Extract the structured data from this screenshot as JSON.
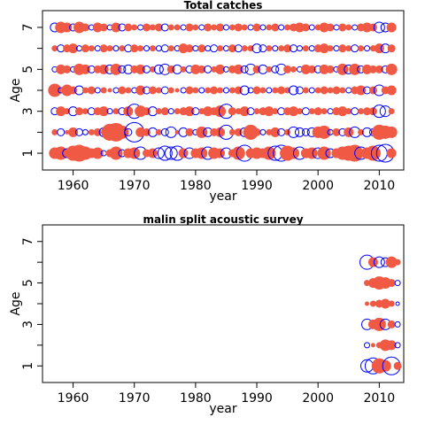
{
  "chart_data": [
    {
      "type": "scatter",
      "title": "Total catches",
      "xlabel": "year",
      "ylabel": "Age",
      "xlim": [
        1955,
        2014
      ],
      "ylim": [
        0.2,
        7.8
      ],
      "xticks": [
        1960,
        1970,
        1980,
        1990,
        2000,
        2010
      ],
      "yticks": [
        1,
        2,
        3,
        4,
        5,
        6,
        7
      ],
      "ytick_labels": [
        "1",
        "",
        "3",
        "",
        "5",
        "",
        "7"
      ],
      "grid": false,
      "colors": {
        "positive": "#F05A45",
        "negative": "#0000FF"
      },
      "description_of_marks": "bubble residual plot: filled red circles for positive residuals, open blue circles for negative; size proportional to magnitude",
      "years": [
        1957,
        1958,
        1959,
        1960,
        1961,
        1962,
        1963,
        1964,
        1965,
        1966,
        1967,
        1968,
        1969,
        1970,
        1971,
        1972,
        1973,
        1974,
        1975,
        1976,
        1977,
        1978,
        1979,
        1980,
        1981,
        1982,
        1983,
        1984,
        1985,
        1986,
        1987,
        1988,
        1989,
        1990,
        1991,
        1992,
        1993,
        1994,
        1995,
        1996,
        1997,
        1998,
        1999,
        2000,
        2001,
        2002,
        2003,
        2004,
        2005,
        2006,
        2007,
        2008,
        2009,
        2010,
        2011,
        2012
      ],
      "residuals": {
        "1": [
          0.6,
          0.7,
          -0.5,
          0.8,
          0.9,
          0.7,
          0.5,
          0.6,
          -0.3,
          0.4,
          0.7,
          -0.4,
          0.5,
          0.6,
          -0.7,
          0.4,
          0.5,
          -0.6,
          -0.8,
          -0.7,
          -0.8,
          0.5,
          -0.6,
          0.5,
          0.6,
          -0.7,
          0.6,
          0.5,
          -0.6,
          0.4,
          0.7,
          -0.9,
          0.5,
          0.6,
          0.5,
          0.7,
          -0.8,
          -0.9,
          0.8,
          0.6,
          -0.7,
          0.5,
          0.6,
          -0.6,
          0.7,
          -0.5,
          0.5,
          0.7,
          0.8,
          0.9,
          -0.7,
          0.6,
          0.8,
          -0.9,
          -1.0,
          0.5
        ],
        "2": [
          0.3,
          -0.4,
          0.2,
          0.5,
          -0.4,
          -0.3,
          0.3,
          0.4,
          -0.5,
          0.9,
          1.0,
          0.7,
          -0.4,
          -1.1,
          0.5,
          0.4,
          -0.5,
          0.3,
          -0.4,
          -0.6,
          0.2,
          -0.5,
          0.4,
          -0.3,
          0.6,
          -0.5,
          0.4,
          0.5,
          -0.8,
          0.3,
          0.4,
          -0.5,
          0.8,
          0.4,
          -0.3,
          0.3,
          0.5,
          -0.4,
          0.3,
          -0.6,
          -0.5,
          -0.4,
          -0.5,
          0.6,
          0.7,
          -0.3,
          0.4,
          -0.4,
          0.5,
          -0.6,
          0.3,
          -0.5,
          -0.4,
          0.8,
          0.7,
          0.6
        ],
        "3": [
          -0.4,
          0.5,
          0.3,
          -0.5,
          0.4,
          0.3,
          -0.4,
          0.4,
          0.5,
          -0.3,
          0.3,
          -0.4,
          0.5,
          -0.8,
          0.6,
          0.4,
          -0.5,
          0.3,
          0.4,
          -0.3,
          0.3,
          0.4,
          0.5,
          -0.4,
          0.3,
          0.5,
          0.4,
          0.6,
          -0.8,
          0.4,
          0.3,
          0.5,
          -0.4,
          0.3,
          0.4,
          0.5,
          0.3,
          -0.4,
          0.4,
          0.5,
          0.3,
          -0.4,
          0.3,
          0.4,
          0.3,
          -0.3,
          0.4,
          0.5,
          0.3,
          -0.4,
          0.3,
          0.4,
          0.4,
          -0.7,
          -0.6,
          0.3
        ],
        "4": [
          0.7,
          -0.3,
          0.6,
          0.4,
          -0.5,
          0.3,
          0.4,
          -0.3,
          0.3,
          0.2,
          -0.3,
          0.4,
          0.3,
          -0.3,
          0.5,
          -0.4,
          0.4,
          0.3,
          -0.4,
          0.3,
          0.2,
          -0.3,
          0.4,
          0.3,
          -0.3,
          0.3,
          0.4,
          0.3,
          -0.3,
          0.3,
          0.4,
          -0.5,
          -0.3,
          0.4,
          0.3,
          -0.3,
          0.3,
          0.4,
          0.3,
          -0.5,
          -0.4,
          0.3,
          -0.3,
          0.3,
          0.4,
          0.3,
          0.4,
          0.3,
          -0.3,
          0.4,
          0.5,
          -0.4,
          0.4,
          -0.6,
          0.4,
          0.5
        ],
        "5": [
          -0.3,
          0.5,
          0.4,
          -0.3,
          0.6,
          0.5,
          -0.4,
          0.4,
          0.5,
          -0.5,
          0.6,
          -0.4,
          -0.5,
          0.4,
          0.5,
          -0.4,
          0.3,
          -0.5,
          -0.6,
          0.4,
          -0.5,
          0.3,
          -0.4,
          0.5,
          0.4,
          -0.4,
          0.3,
          0.5,
          -0.3,
          0.4,
          0.5,
          -0.4,
          -0.6,
          0.4,
          -0.5,
          0.3,
          -0.4,
          -0.6,
          0.4,
          0.3,
          -0.3,
          0.5,
          0.4,
          -0.4,
          0.5,
          0.4,
          -0.3,
          0.6,
          -0.5,
          0.6,
          -0.4,
          0.5,
          0.4,
          0.4,
          -0.4,
          0.6
        ],
        "6": [
          0.3,
          -0.4,
          0.4,
          0.5,
          -0.3,
          0.4,
          0.3,
          -0.3,
          0.4,
          0.3,
          -0.3,
          0.3,
          -0.4,
          0.4,
          0.3,
          -0.3,
          0.3,
          -0.3,
          -0.4,
          0.3,
          -0.3,
          0.5,
          0.4,
          -0.3,
          0.4,
          -0.3,
          -0.4,
          0.3,
          -0.3,
          0.4,
          -0.4,
          0.3,
          0.3,
          -0.5,
          -0.4,
          0.3,
          -0.3,
          0.3,
          0.4,
          -0.4,
          -0.3,
          0.3,
          -0.3,
          0.4,
          0.5,
          0.3,
          -0.3,
          0.4,
          0.3,
          -0.4,
          0.3,
          -0.3,
          0.3,
          0.5,
          -0.5,
          0.4
        ],
        "7": [
          -0.5,
          0.6,
          0.5,
          -0.4,
          0.6,
          0.4,
          -0.3,
          0.5,
          0.4,
          -0.3,
          0.5,
          -0.4,
          0.4,
          0.3,
          -0.3,
          0.4,
          0.3,
          0.4,
          -0.4,
          0.3,
          0.3,
          -0.3,
          0.4,
          0.3,
          -0.3,
          0.4,
          0.3,
          0.4,
          -0.3,
          0.3,
          0.4,
          0.3,
          -0.3,
          0.4,
          -0.3,
          0.3,
          0.4,
          -0.3,
          0.3,
          0.4,
          0.5,
          0.4,
          -0.3,
          0.3,
          0.5,
          0.4,
          -0.3,
          0.4,
          0.3,
          -0.3,
          0.4,
          0.5,
          0.4,
          -0.6,
          -0.5,
          0.5
        ]
      }
    },
    {
      "type": "scatter",
      "title": "malin split acoustic survey",
      "xlabel": "year",
      "ylabel": "Age",
      "xlim": [
        1955,
        2014
      ],
      "ylim": [
        0.2,
        7.8
      ],
      "xticks": [
        1960,
        1970,
        1980,
        1990,
        2000,
        2010
      ],
      "yticks": [
        1,
        2,
        3,
        4,
        5,
        6,
        7
      ],
      "ytick_labels": [
        "1",
        "",
        "3",
        "",
        "5",
        "",
        "7"
      ],
      "grid": false,
      "colors": {
        "positive": "#F05A45",
        "negative": "#0000FF"
      },
      "years": [
        2008,
        2009,
        2010,
        2011,
        2012,
        2013
      ],
      "residuals": {
        "1": [
          -0.7,
          -0.9,
          0.8,
          0.6,
          -1.0,
          0.4
        ],
        "2": [
          -0.3,
          0.2,
          0.3,
          0.6,
          0.5,
          -0.3
        ],
        "3": [
          -0.6,
          0.5,
          0.7,
          -0.6,
          0.4,
          -0.3
        ],
        "4": [
          0.2,
          0.3,
          0.4,
          0.5,
          0.3,
          -0.2
        ],
        "5": [
          0.3,
          0.5,
          0.7,
          0.6,
          0.4,
          -0.3
        ],
        "6": [
          -0.8,
          0.5,
          -0.6,
          -0.5,
          0.6,
          0.3
        ]
      }
    }
  ]
}
